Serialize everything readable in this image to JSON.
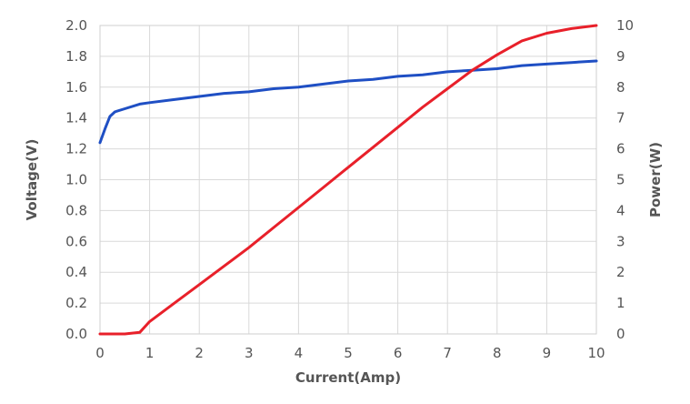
{
  "chart_data": {
    "type": "line",
    "xlabel": "Current(Amp)",
    "ylabel": "Voltage(V)",
    "y2label": "Power(W)",
    "xlim": [
      0,
      10
    ],
    "ylim": [
      0,
      2.0
    ],
    "y2lim": [
      0,
      10
    ],
    "grid": true,
    "legend": "none",
    "x_ticks": [
      "0",
      "1",
      "2",
      "3",
      "4",
      "5",
      "6",
      "7",
      "8",
      "9",
      "10"
    ],
    "y_ticks": [
      "0.0",
      "0.2",
      "0.4",
      "0.6",
      "0.8",
      "1.0",
      "1.2",
      "1.4",
      "1.6",
      "1.8",
      "2.0"
    ],
    "y2_ticks": [
      "0",
      "1",
      "2",
      "3",
      "4",
      "5",
      "6",
      "7",
      "8",
      "9",
      "10"
    ],
    "series": [
      {
        "axis": "left",
        "color": "#1f4fc4",
        "x": [
          0,
          0.1,
          0.2,
          0.3,
          0.5,
          0.8,
          1,
          1.5,
          2,
          2.5,
          3,
          3.5,
          4,
          4.5,
          5,
          5.5,
          6,
          6.5,
          7,
          7.5,
          8,
          8.5,
          9,
          9.5,
          10
        ],
        "y": [
          1.24,
          1.33,
          1.41,
          1.44,
          1.46,
          1.49,
          1.5,
          1.52,
          1.54,
          1.56,
          1.57,
          1.59,
          1.6,
          1.62,
          1.64,
          1.65,
          1.67,
          1.68,
          1.7,
          1.71,
          1.72,
          1.74,
          1.75,
          1.76,
          1.77
        ]
      },
      {
        "axis": "right",
        "color": "#e8202a",
        "x": [
          0,
          0.5,
          0.8,
          1,
          1.5,
          2,
          2.5,
          3,
          3.5,
          4,
          4.5,
          5,
          5.5,
          6,
          6.5,
          7,
          7.5,
          8,
          8.5,
          9,
          9.5,
          10
        ],
        "y": [
          0,
          0,
          0.05,
          0.4,
          1.0,
          1.6,
          2.2,
          2.8,
          3.45,
          4.1,
          4.75,
          5.4,
          6.05,
          6.7,
          7.35,
          7.95,
          8.55,
          9.05,
          9.5,
          9.75,
          9.9,
          10.0
        ]
      }
    ]
  }
}
